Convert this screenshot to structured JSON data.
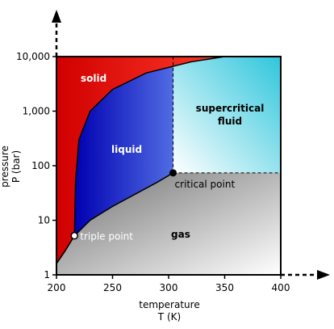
{
  "chart_data": {
    "type": "phase-diagram",
    "x_axis": {
      "label_lines": [
        "temperature",
        "T (K)"
      ],
      "ticks": [
        200,
        250,
        300,
        350,
        400
      ],
      "range": [
        200,
        400
      ]
    },
    "y_axis": {
      "label_lines": [
        "pressure",
        "P (bar)"
      ],
      "ticks": [
        1,
        10,
        100,
        1000,
        10000
      ],
      "tick_labels": [
        "1",
        "10",
        "100",
        "1,000",
        "10,000"
      ],
      "range": [
        1,
        10000
      ],
      "scale": "log"
    },
    "regions": [
      {
        "id": "solid",
        "label": "solid",
        "color_start": "#d00000",
        "color_end": "#ff3a2a",
        "text_color": "#ffffff"
      },
      {
        "id": "liquid",
        "label": "liquid",
        "color_start": "#0000b0",
        "color_end": "#7aa4ff",
        "text_color": "#ffffff"
      },
      {
        "id": "supercritical",
        "label_lines": [
          "supercritical",
          "fluid"
        ],
        "color_start": "#2fc6dc",
        "color_end": "#ffffff",
        "text_color": "#000000"
      },
      {
        "id": "gas",
        "label": "gas",
        "color_start": "#6e6e6e",
        "color_end": "#ffffff",
        "text_color": "#000000"
      }
    ],
    "points": [
      {
        "id": "triple_point",
        "label": "triple point",
        "T": 216,
        "P": 5.2,
        "marker_fill": "#ffffff",
        "text_color": "#ffffff"
      },
      {
        "id": "critical_point",
        "label": "critical point",
        "T": 304,
        "P": 74,
        "marker_fill": "#000000",
        "text_color": "#000000"
      }
    ],
    "curves": {
      "melting": [
        [
          216,
          5.2
        ],
        [
          217,
          50
        ],
        [
          220,
          300
        ],
        [
          230,
          1000
        ],
        [
          250,
          2500
        ],
        [
          280,
          5000
        ],
        [
          320,
          8000
        ],
        [
          350,
          10000
        ]
      ],
      "vaporization": [
        [
          216,
          5.2
        ],
        [
          230,
          10
        ],
        [
          250,
          18
        ],
        [
          270,
          30
        ],
        [
          290,
          50
        ],
        [
          304,
          74
        ]
      ],
      "sublimation": [
        [
          200,
          1.6
        ],
        [
          208,
          2.8
        ],
        [
          216,
          5.2
        ]
      ],
      "critical_temperature_line": {
        "T": 304,
        "P_range": [
          74,
          10000
        ],
        "style": "dashed"
      },
      "critical_pressure_line": {
        "P": 74,
        "T_range": [
          304,
          400
        ],
        "style": "dashed"
      }
    }
  }
}
